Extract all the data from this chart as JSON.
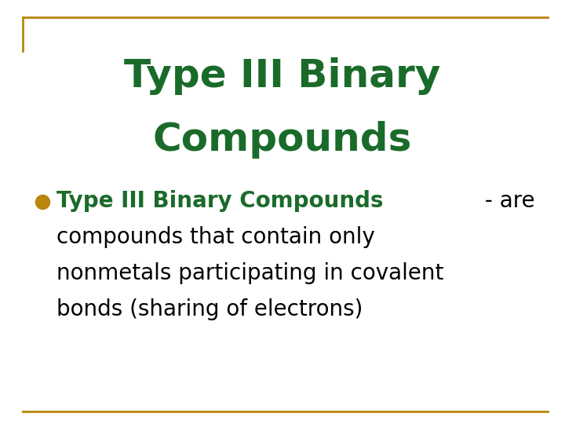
{
  "title_line1": "Type III Binary",
  "title_line2": "Compounds",
  "title_color": "#1a6b2a",
  "title_fontsize": 36,
  "title_fontweight": "bold",
  "title_fontfamily": "Arial",
  "bullet_bold_text": "Type III Binary Compounds",
  "bullet_normal_suffix": " - are",
  "bullet_continuation": [
    "compounds that contain only",
    "nonmetals participating in covalent",
    "bonds (sharing of electrons)"
  ],
  "bullet_bold_color": "#1a6b2a",
  "bullet_normal_color": "#000000",
  "bullet_fontsize": 20,
  "bullet_marker_color": "#b8860b",
  "bullet_marker_size": 13,
  "background_color": "#ffffff",
  "border_color": "#b8860b",
  "border_linewidth": 2.0
}
